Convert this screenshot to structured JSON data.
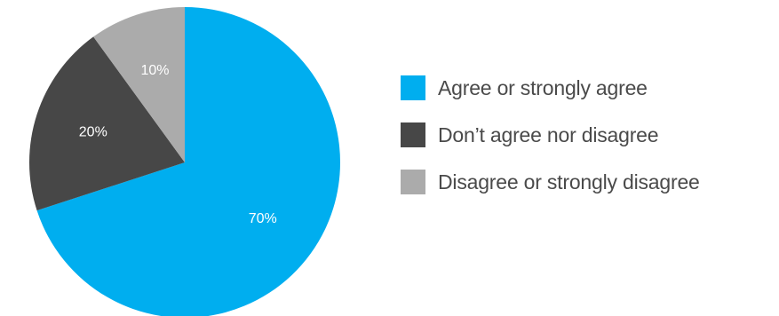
{
  "chart_data": {
    "type": "pie",
    "start_angle_deg": 0,
    "direction": "clockwise",
    "slices": [
      {
        "label": "Agree or strongly agree",
        "value": 70,
        "value_label": "70%",
        "color": "#00AEEF"
      },
      {
        "label": "Don’t agree nor disagree",
        "value": 20,
        "value_label": "20%",
        "color": "#474747"
      },
      {
        "label": "Disagree or strongly disagree",
        "value": 10,
        "value_label": "10%",
        "color": "#ABABAB"
      }
    ],
    "legend_position": "right"
  }
}
